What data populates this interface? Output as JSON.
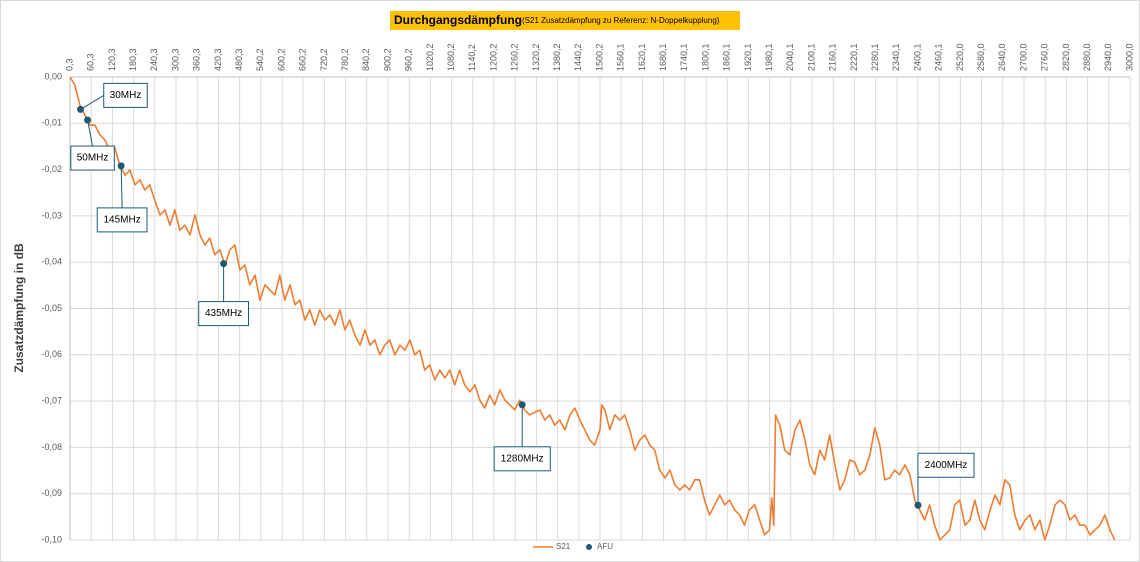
{
  "chart_data": {
    "type": "line",
    "title": "Durchgangsdämpfung",
    "subtitle": "(S21 Zusatzdämpfung zu Referenz: N-Doppelkupplung)",
    "y_label": "Zusatzdämpfung in dB",
    "xlim": [
      0.3,
      3000
    ],
    "ylim": [
      -0.1,
      0
    ],
    "grid": true,
    "legend": "bottom",
    "xticks": [
      {
        "value": 0.3,
        "label": "0,3"
      },
      {
        "value": 60.3,
        "label": "60,3"
      },
      {
        "value": 120.3,
        "label": "120,3"
      },
      {
        "value": 180.3,
        "label": "180,3"
      },
      {
        "value": 240.3,
        "label": "240,3"
      },
      {
        "value": 300.3,
        "label": "300,3"
      },
      {
        "value": 360.3,
        "label": "360,3"
      },
      {
        "value": 420.3,
        "label": "420,3"
      },
      {
        "value": 480.3,
        "label": "480,3"
      },
      {
        "value": 540.2,
        "label": "540,2"
      },
      {
        "value": 600.2,
        "label": "600,2"
      },
      {
        "value": 660.2,
        "label": "660,2"
      },
      {
        "value": 720.2,
        "label": "720,2"
      },
      {
        "value": 780.2,
        "label": "780,2"
      },
      {
        "value": 840.2,
        "label": "840,2"
      },
      {
        "value": 900.2,
        "label": "900,2"
      },
      {
        "value": 960.2,
        "label": "960,2"
      },
      {
        "value": 1020.2,
        "label": "1020,2"
      },
      {
        "value": 1080.2,
        "label": "1080,2"
      },
      {
        "value": 1140.2,
        "label": "1140,2"
      },
      {
        "value": 1200.2,
        "label": "1200,2"
      },
      {
        "value": 1260.2,
        "label": "1260,2"
      },
      {
        "value": 1320.2,
        "label": "1320,2"
      },
      {
        "value": 1380.2,
        "label": "1380,2"
      },
      {
        "value": 1440.2,
        "label": "1440,2"
      },
      {
        "value": 1500.2,
        "label": "1500,2"
      },
      {
        "value": 1560.1,
        "label": "1560,1"
      },
      {
        "value": 1620.1,
        "label": "1620,1"
      },
      {
        "value": 1680.1,
        "label": "1680,1"
      },
      {
        "value": 1740.1,
        "label": "1740,1"
      },
      {
        "value": 1800.1,
        "label": "1800,1"
      },
      {
        "value": 1860.1,
        "label": "1860,1"
      },
      {
        "value": 1920.1,
        "label": "1920,1"
      },
      {
        "value": 1980.1,
        "label": "1980,1"
      },
      {
        "value": 2040.1,
        "label": "2040,1"
      },
      {
        "value": 2100.1,
        "label": "2100,1"
      },
      {
        "value": 2160.1,
        "label": "2160,1"
      },
      {
        "value": 2220.1,
        "label": "2220,1"
      },
      {
        "value": 2280.1,
        "label": "2280,1"
      },
      {
        "value": 2340.1,
        "label": "2340,1"
      },
      {
        "value": 2400.1,
        "label": "2400,1"
      },
      {
        "value": 2460.1,
        "label": "2460,1"
      },
      {
        "value": 2520,
        "label": "2520,0"
      },
      {
        "value": 2580,
        "label": "2580,0"
      },
      {
        "value": 2640,
        "label": "2640,0"
      },
      {
        "value": 2700,
        "label": "2700,0"
      },
      {
        "value": 2760,
        "label": "2760,0"
      },
      {
        "value": 2820,
        "label": "2820,0"
      },
      {
        "value": 2880,
        "label": "2880,0"
      },
      {
        "value": 2940,
        "label": "2940,0"
      },
      {
        "value": 3000,
        "label": "3000,0"
      }
    ],
    "yticks": [
      {
        "value": 0,
        "label": "0,00"
      },
      {
        "value": -0.01,
        "label": "-0,01"
      },
      {
        "value": -0.02,
        "label": "-0,02"
      },
      {
        "value": -0.03,
        "label": "-0,03"
      },
      {
        "value": -0.04,
        "label": "-0,04"
      },
      {
        "value": -0.05,
        "label": "-0,05"
      },
      {
        "value": -0.06,
        "label": "-0,06"
      },
      {
        "value": -0.07,
        "label": "-0,07"
      },
      {
        "value": -0.08,
        "label": "-0,08"
      },
      {
        "value": -0.09,
        "label": "-0,09"
      },
      {
        "value": -0.1,
        "label": "-0,10"
      }
    ],
    "series": [
      {
        "name": "S21",
        "color": "#ed7d31",
        "x": [
          0,
          14,
          28,
          42,
          57,
          71,
          85,
          99,
          113,
          127,
          141,
          156,
          170,
          184,
          198,
          212,
          226,
          240,
          255,
          269,
          283,
          297,
          311,
          325,
          340,
          354,
          368,
          382,
          396,
          410,
          424,
          439,
          453,
          467,
          481,
          495,
          509,
          524,
          538,
          552,
          566,
          580,
          594,
          608,
          623,
          637,
          651,
          665,
          679,
          693,
          707,
          722,
          736,
          750,
          764,
          778,
          792,
          806,
          821,
          835,
          849,
          863,
          877,
          891,
          905,
          920,
          934,
          948,
          962,
          976,
          990,
          1004,
          1018,
          1033,
          1047,
          1061,
          1075,
          1089,
          1103,
          1117,
          1132,
          1146,
          1160,
          1174,
          1188,
          1202,
          1217,
          1231,
          1245,
          1259,
          1273,
          1287,
          1301,
          1330,
          1344,
          1358,
          1372,
          1386,
          1401,
          1415,
          1429,
          1443,
          1457,
          1471,
          1485,
          1500,
          1505,
          1514,
          1528,
          1542,
          1556,
          1570,
          1584,
          1599,
          1613,
          1627,
          1641,
          1655,
          1669,
          1684,
          1698,
          1712,
          1726,
          1740,
          1754,
          1768,
          1782,
          1796,
          1810,
          1825,
          1839,
          1853,
          1867,
          1881,
          1895,
          1909,
          1923,
          1938,
          1952,
          1966,
          1980,
          1986,
          1992,
          1997,
          2009,
          2023,
          2037,
          2052,
          2066,
          2080,
          2094,
          2108,
          2122,
          2136,
          2150,
          2165,
          2179,
          2193,
          2207,
          2221,
          2235,
          2250,
          2264,
          2278,
          2292,
          2306,
          2320,
          2334,
          2348,
          2363,
          2377,
          2391,
          2405,
          2419,
          2433,
          2447,
          2462,
          2476,
          2490,
          2504,
          2518,
          2533,
          2547,
          2561,
          2575,
          2589,
          2604,
          2618,
          2632,
          2646,
          2660,
          2674,
          2688,
          2703,
          2717,
          2731,
          2745,
          2759,
          2773,
          2788,
          2802,
          2816,
          2830,
          2844,
          2858,
          2873,
          2887,
          2901,
          2915,
          2929,
          2943,
          2957
        ],
        "values": [
          0,
          -0.0017,
          -0.006,
          -0.0082,
          -0.0104,
          -0.0104,
          -0.0125,
          -0.0136,
          -0.0158,
          -0.0153,
          -0.019,
          -0.0212,
          -0.0201,
          -0.0233,
          -0.0222,
          -0.0244,
          -0.0233,
          -0.0266,
          -0.0298,
          -0.0287,
          -0.032,
          -0.0287,
          -0.0331,
          -0.032,
          -0.0341,
          -0.0298,
          -0.0341,
          -0.0363,
          -0.0348,
          -0.0384,
          -0.0373,
          -0.0406,
          -0.0373,
          -0.0363,
          -0.0417,
          -0.0406,
          -0.0449,
          -0.0428,
          -0.0482,
          -0.0449,
          -0.046,
          -0.0471,
          -0.0428,
          -0.0482,
          -0.0449,
          -0.0492,
          -0.0482,
          -0.0525,
          -0.0503,
          -0.0536,
          -0.0503,
          -0.0525,
          -0.0514,
          -0.0536,
          -0.0503,
          -0.0546,
          -0.0525,
          -0.0557,
          -0.0579,
          -0.0546,
          -0.0579,
          -0.0568,
          -0.06,
          -0.0579,
          -0.0568,
          -0.06,
          -0.0579,
          -0.059,
          -0.0568,
          -0.06,
          -0.059,
          -0.0633,
          -0.0622,
          -0.0654,
          -0.0633,
          -0.065,
          -0.0633,
          -0.0665,
          -0.0633,
          -0.0665,
          -0.068,
          -0.0665,
          -0.0698,
          -0.0715,
          -0.0687,
          -0.0708,
          -0.0676,
          -0.0698,
          -0.0708,
          -0.0719,
          -0.0698,
          -0.0719,
          -0.073,
          -0.0719,
          -0.0741,
          -0.073,
          -0.0752,
          -0.0741,
          -0.0762,
          -0.073,
          -0.0715,
          -0.0741,
          -0.0762,
          -0.0784,
          -0.0795,
          -0.0762,
          -0.0708,
          -0.0719,
          -0.0762,
          -0.073,
          -0.0741,
          -0.073,
          -0.0762,
          -0.0806,
          -0.0784,
          -0.0773,
          -0.0795,
          -0.0806,
          -0.0849,
          -0.0866,
          -0.0849,
          -0.0881,
          -0.0892,
          -0.0881,
          -0.0892,
          -0.087,
          -0.087,
          -0.0914,
          -0.0946,
          -0.0924,
          -0.0903,
          -0.0924,
          -0.0914,
          -0.0935,
          -0.0946,
          -0.0968,
          -0.0935,
          -0.0924,
          -0.0957,
          -0.0989,
          -0.0978,
          -0.0909,
          -0.0968,
          -0.073,
          -0.0752,
          -0.0806,
          -0.0816,
          -0.0762,
          -0.0741,
          -0.0784,
          -0.0838,
          -0.0859,
          -0.0806,
          -0.0827,
          -0.0773,
          -0.0838,
          -0.0892,
          -0.087,
          -0.0827,
          -0.0832,
          -0.0859,
          -0.0849,
          -0.0816,
          -0.0758,
          -0.0795,
          -0.087,
          -0.0866,
          -0.0849,
          -0.0859,
          -0.0838,
          -0.0859,
          -0.0914,
          -0.0935,
          -0.0957,
          -0.0924,
          -0.0968,
          -0.1,
          -0.0989,
          -0.0978,
          -0.0924,
          -0.0914,
          -0.0968,
          -0.0957,
          -0.0914,
          -0.0957,
          -0.0978,
          -0.0935,
          -0.0903,
          -0.0924,
          -0.087,
          -0.0881,
          -0.0946,
          -0.0978,
          -0.0957,
          -0.0946,
          -0.0978,
          -0.0957,
          -0.1,
          -0.0968,
          -0.0924,
          -0.0914,
          -0.0924,
          -0.0957,
          -0.0946,
          -0.0968,
          -0.0968,
          -0.0989,
          -0.0978,
          -0.0968,
          -0.0946,
          -0.0978,
          -0.1
        ]
      },
      {
        "name": "AFU",
        "color": "#1f5a75",
        "marker": "dot",
        "x": [
          30,
          50,
          145,
          435,
          1280,
          2400
        ],
        "values": [
          -0.007,
          -0.0093,
          -0.0192,
          -0.0403,
          -0.0708,
          -0.0925
        ],
        "labels": [
          "30MHz",
          "50MHz",
          "145MHz",
          "435MHz",
          "1280MHz",
          "2400MHz"
        ]
      }
    ]
  }
}
